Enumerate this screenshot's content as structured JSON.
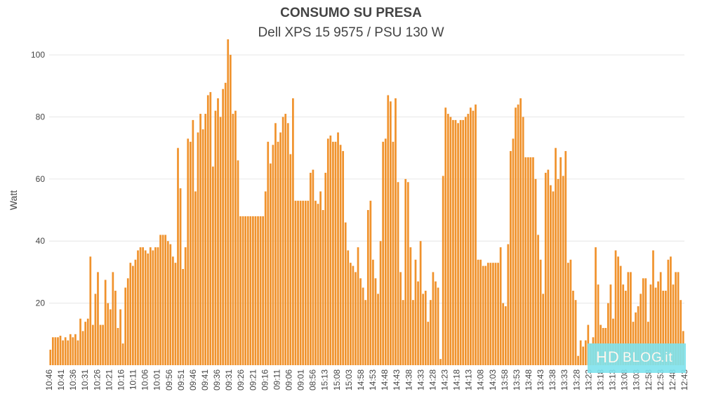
{
  "chart_data": {
    "type": "bar",
    "title": "CONSUMO SU PRESA",
    "subtitle": "Dell XPS 15 9575 / PSU 130 W",
    "ylabel": "Watt",
    "xlabel": "",
    "ylim": [
      0,
      105
    ],
    "yticks": [
      20,
      40,
      60,
      80,
      100
    ],
    "grid": true,
    "bar_color": "#f0922c",
    "tick_labels": [
      "10:46",
      "10:41",
      "10:36",
      "10:31",
      "10:26",
      "10:21",
      "10:16",
      "10:11",
      "10:06",
      "10:01",
      "09:56",
      "09:51",
      "09:46",
      "09:41",
      "09:36",
      "09:31",
      "09:26",
      "09:21",
      "09:16",
      "09:11",
      "09:06",
      "09:01",
      "08:56",
      "15:13",
      "15:08",
      "15:03",
      "14:58",
      "14:53",
      "14:48",
      "14:43",
      "14:38",
      "14:33",
      "14:28",
      "14:23",
      "14:18",
      "14:13",
      "14:08",
      "14:03",
      "13:58",
      "13:53",
      "13:48",
      "13:43",
      "13:38",
      "13:33",
      "13:28",
      "13:23",
      "13:18",
      "13:13",
      "13:08",
      "13:03",
      "12:58",
      "12:53",
      "12:48",
      "12:43"
    ],
    "values": [
      5,
      9,
      9,
      9,
      9.5,
      8,
      9,
      8,
      10,
      9,
      10,
      8,
      15,
      11,
      14,
      15,
      35,
      13,
      23,
      30,
      13,
      13,
      27.5,
      20,
      18,
      30,
      24,
      12,
      18,
      7,
      25,
      28,
      33,
      32,
      34,
      37,
      38,
      38,
      37,
      36,
      38,
      37,
      38,
      38,
      42,
      42,
      42,
      40,
      39,
      35,
      33,
      70,
      57,
      31,
      38,
      73,
      72,
      79,
      56,
      75,
      81,
      76,
      81,
      87,
      88,
      64,
      82,
      86,
      80,
      89,
      91,
      105,
      100,
      81,
      82,
      66,
      48,
      48,
      48,
      48,
      48,
      48,
      48,
      48,
      48,
      48,
      56,
      72,
      65,
      71,
      78,
      72,
      75,
      80,
      81,
      78,
      68,
      86,
      53,
      53,
      53,
      53,
      53,
      53,
      62,
      63,
      53,
      52,
      56,
      50,
      62,
      73,
      74,
      72,
      72,
      75,
      71,
      69,
      46,
      37,
      33,
      32,
      30,
      38,
      28,
      25,
      21,
      50,
      53,
      34,
      28,
      23,
      40,
      72,
      73,
      87,
      85,
      72,
      86,
      59,
      30,
      21,
      60,
      59,
      38,
      21,
      34,
      27,
      40,
      23,
      24,
      14,
      21,
      30,
      27,
      25,
      2,
      61,
      83,
      81,
      80,
      79,
      79,
      78,
      79,
      79,
      80,
      81,
      83,
      82,
      84,
      34,
      34,
      32,
      32,
      33,
      33,
      33,
      33,
      33,
      38,
      20,
      19,
      39,
      69,
      73,
      83,
      84,
      86,
      80,
      67,
      67,
      67,
      67,
      60,
      42,
      34,
      23,
      62,
      63,
      58,
      56,
      70,
      60,
      67,
      61,
      69,
      33,
      34,
      24,
      21,
      3,
      8,
      6,
      8,
      13,
      7,
      9,
      38,
      26,
      13,
      12,
      12,
      20,
      26,
      15,
      37,
      35,
      32,
      26,
      24,
      30,
      30,
      14,
      17,
      19,
      23,
      28,
      28,
      14,
      26,
      37,
      25,
      27,
      30,
      24,
      24,
      34,
      35,
      26,
      30,
      30,
      21,
      11
    ]
  },
  "watermark": {
    "text_hd": "HD",
    "text_blog": "BLOG",
    "text_it": ".it",
    "color": "#7fe3ee"
  }
}
